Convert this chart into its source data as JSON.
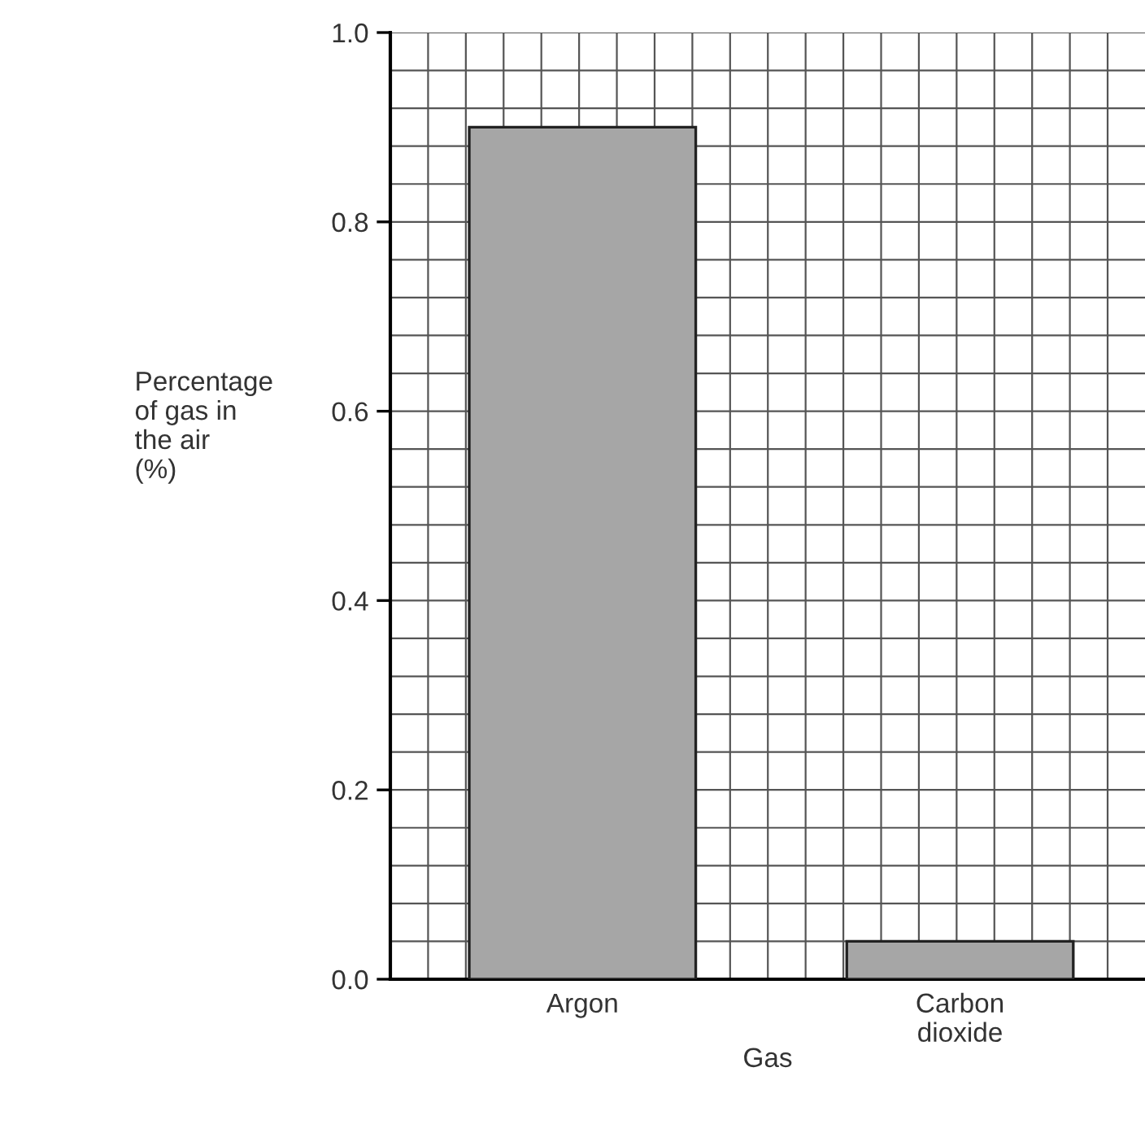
{
  "chart_data": {
    "type": "bar",
    "categories": [
      "Argon",
      "Carbon dioxide"
    ],
    "values": [
      0.9,
      0.04
    ],
    "color": "#a6a6a6",
    "xlabel": "Gas",
    "ylabel": "Percentage\nof gas in\nthe air\n(%)",
    "ylim": [
      0,
      1.0
    ],
    "yticks": [
      {
        "value": 0,
        "label": "0.0"
      },
      0.2,
      0.4,
      0.6,
      0.8,
      {
        "value": 1.0,
        "label": "1.0"
      }
    ],
    "grid": true
  }
}
